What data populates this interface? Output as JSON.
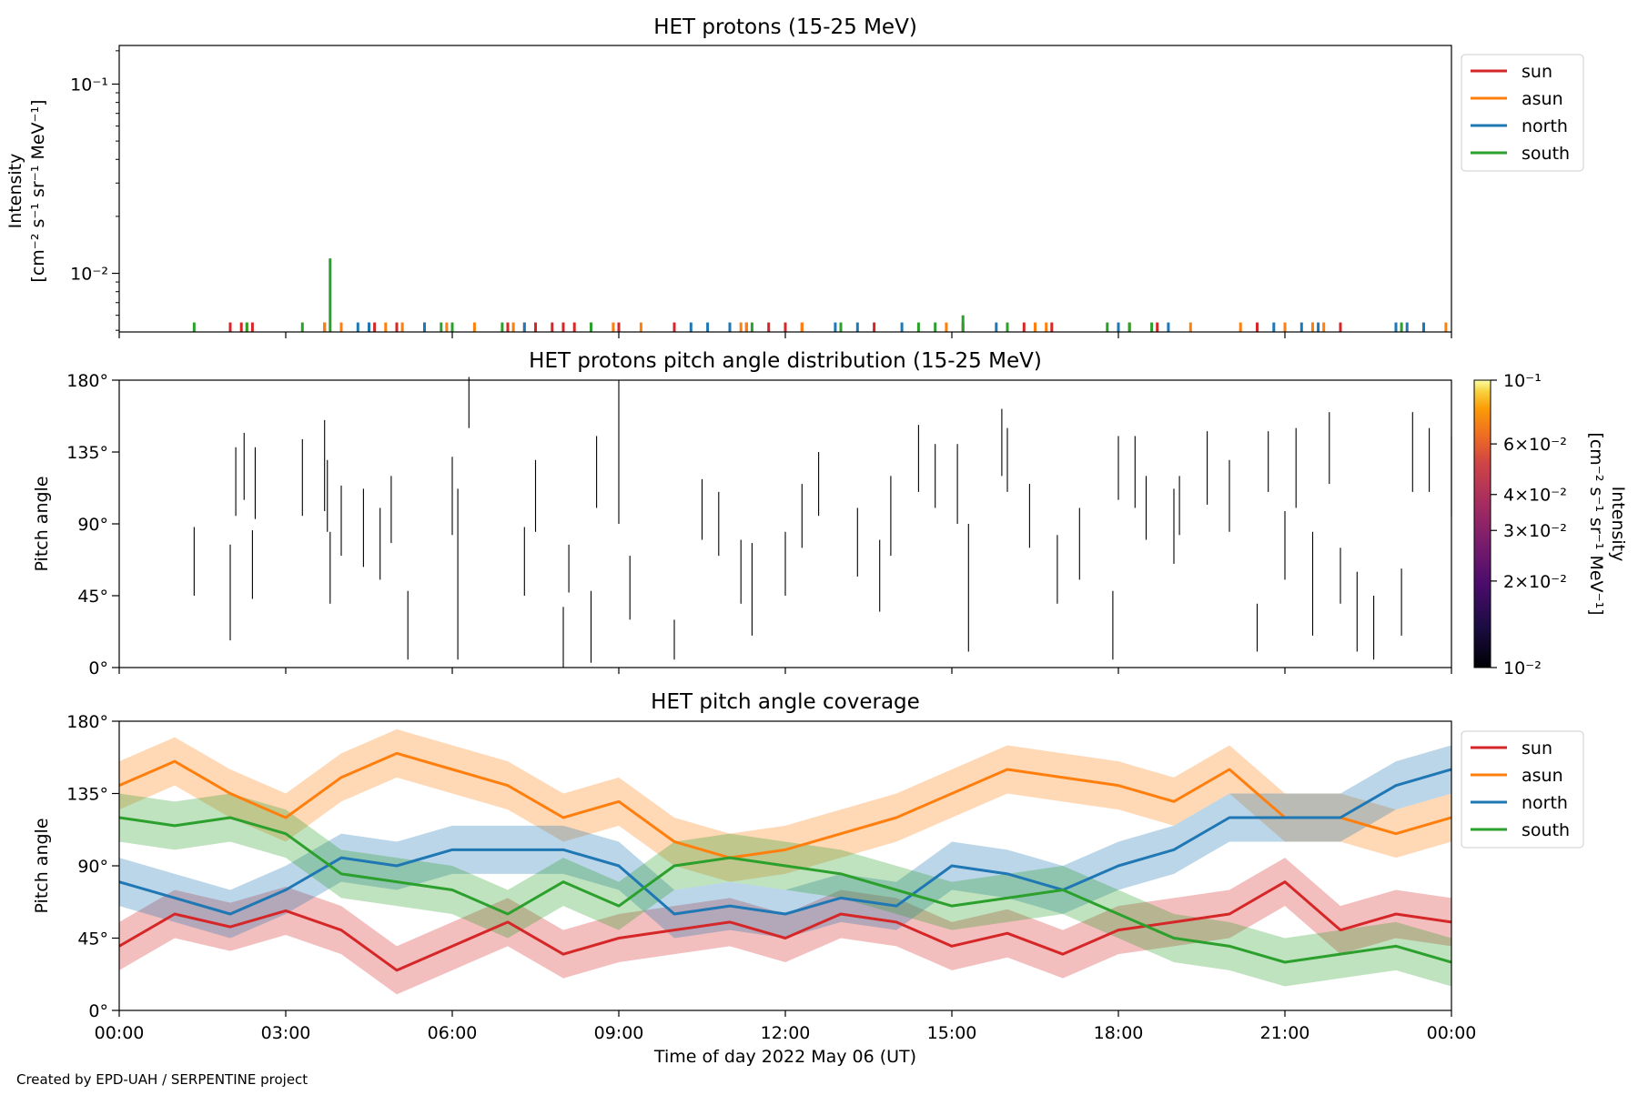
{
  "figure": {
    "credit": "Created by EPD-UAH / SERPENTINE project",
    "xlabel": "Time of day 2022 May 06 (UT)",
    "x_ticks": [
      "00:00",
      "03:00",
      "06:00",
      "09:00",
      "12:00",
      "15:00",
      "18:00",
      "21:00",
      "00:00"
    ]
  },
  "colors": {
    "sun": "#d62728",
    "asun": "#ff7f0e",
    "north": "#1f77b4",
    "south": "#2ca02c"
  },
  "chart_data": [
    {
      "type": "line",
      "title": "HET protons (15-25 MeV)",
      "ylabel_lines": [
        "Intensity",
        "[cm⁻² s⁻¹ sr⁻¹ MeV⁻¹]"
      ],
      "y_scale": "log",
      "y_ticks": [
        "10⁻¹",
        "10⁻²"
      ],
      "ylim": [
        0.0049,
        0.16
      ],
      "xlim_hours": [
        0,
        24
      ],
      "legend": [
        "sun",
        "asun",
        "north",
        "south"
      ],
      "legend_position": "outside-top-right",
      "series": [
        {
          "name": "sun",
          "spikes": [
            [
              2.0,
              0.0055
            ],
            [
              2.2,
              0.0055
            ],
            [
              2.4,
              0.0055
            ],
            [
              3.7,
              0.0055
            ],
            [
              4.6,
              0.0055
            ],
            [
              5.0,
              0.0055
            ],
            [
              5.5,
              0.0055
            ],
            [
              7.0,
              0.0055
            ],
            [
              7.5,
              0.0055
            ],
            [
              7.8,
              0.0055
            ],
            [
              8.0,
              0.0055
            ],
            [
              8.2,
              0.0055
            ],
            [
              8.5,
              0.0055
            ],
            [
              9.0,
              0.0055
            ],
            [
              10.0,
              0.0055
            ],
            [
              11.3,
              0.0055
            ],
            [
              11.7,
              0.0055
            ],
            [
              12.0,
              0.0055
            ],
            [
              12.3,
              0.0055
            ],
            [
              13.6,
              0.0055
            ],
            [
              15.2,
              0.0055
            ],
            [
              16.3,
              0.0055
            ],
            [
              16.8,
              0.0055
            ],
            [
              18.2,
              0.0055
            ],
            [
              18.7,
              0.0055
            ],
            [
              20.5,
              0.0055
            ],
            [
              21.5,
              0.0055
            ],
            [
              22.0,
              0.0055
            ]
          ]
        },
        {
          "name": "asun",
          "spikes": [
            [
              2.3,
              0.0055
            ],
            [
              3.7,
              0.0055
            ],
            [
              4.0,
              0.0055
            ],
            [
              4.5,
              0.0055
            ],
            [
              4.8,
              0.0055
            ],
            [
              5.1,
              0.0055
            ],
            [
              5.9,
              0.0055
            ],
            [
              6.4,
              0.0055
            ],
            [
              7.1,
              0.0055
            ],
            [
              7.3,
              0.0055
            ],
            [
              8.9,
              0.0055
            ],
            [
              9.4,
              0.0055
            ],
            [
              11.2,
              0.0055
            ],
            [
              11.3,
              0.0055
            ],
            [
              12.3,
              0.0055
            ],
            [
              14.9,
              0.0055
            ],
            [
              16.5,
              0.0055
            ],
            [
              16.7,
              0.0055
            ],
            [
              19.3,
              0.0055
            ],
            [
              20.2,
              0.0055
            ],
            [
              21.0,
              0.0055
            ],
            [
              21.5,
              0.0055
            ],
            [
              21.7,
              0.0055
            ],
            [
              23.9,
              0.0055
            ]
          ]
        },
        {
          "name": "north",
          "spikes": [
            [
              4.3,
              0.0055
            ],
            [
              4.5,
              0.0055
            ],
            [
              5.5,
              0.0055
            ],
            [
              7.3,
              0.0055
            ],
            [
              10.3,
              0.0055
            ],
            [
              10.6,
              0.0055
            ],
            [
              11.0,
              0.0055
            ],
            [
              12.9,
              0.0055
            ],
            [
              13.3,
              0.0055
            ],
            [
              14.1,
              0.0055
            ],
            [
              15.8,
              0.0055
            ],
            [
              18.0,
              0.0055
            ],
            [
              18.9,
              0.0055
            ],
            [
              20.8,
              0.0055
            ],
            [
              21.3,
              0.0055
            ],
            [
              21.6,
              0.0055
            ],
            [
              23.0,
              0.0055
            ],
            [
              23.2,
              0.0055
            ],
            [
              23.5,
              0.0055
            ]
          ]
        },
        {
          "name": "south",
          "spikes": [
            [
              1.35,
              0.0055
            ],
            [
              2.3,
              0.0055
            ],
            [
              3.3,
              0.0055
            ],
            [
              3.8,
              0.012
            ],
            [
              5.8,
              0.0055
            ],
            [
              6.0,
              0.0055
            ],
            [
              6.9,
              0.0055
            ],
            [
              8.5,
              0.0055
            ],
            [
              11.4,
              0.0055
            ],
            [
              13.0,
              0.0055
            ],
            [
              14.4,
              0.0055
            ],
            [
              14.7,
              0.0055
            ],
            [
              15.2,
              0.006
            ],
            [
              16.0,
              0.0055
            ],
            [
              17.8,
              0.0055
            ],
            [
              18.2,
              0.0055
            ],
            [
              18.6,
              0.0055
            ],
            [
              23.1,
              0.0055
            ]
          ]
        }
      ]
    },
    {
      "type": "heatmap",
      "title": "HET protons pitch angle distribution (15-25 MeV)",
      "ylabel": "Pitch angle",
      "y_ticks": [
        "180°",
        "135°",
        "90°",
        "45°",
        "0°"
      ],
      "ylim": [
        0,
        180
      ],
      "xlim_hours": [
        0,
        24
      ],
      "colorbar": {
        "label_lines": [
          "Intensity",
          "[cm⁻² s⁻¹ sr⁻¹ MeV⁻¹]"
        ],
        "scale": "log",
        "range": [
          0.01,
          0.1
        ],
        "ticks": [
          "10⁻¹",
          "6×10⁻²",
          "4×10⁻²",
          "3×10⁻²",
          "2×10⁻²",
          "10⁻²"
        ]
      },
      "segments": [
        [
          1.35,
          45,
          88
        ],
        [
          2.0,
          17,
          77
        ],
        [
          2.1,
          95,
          138
        ],
        [
          2.25,
          105,
          147
        ],
        [
          2.4,
          43,
          86
        ],
        [
          2.45,
          93,
          138
        ],
        [
          3.3,
          95,
          143
        ],
        [
          3.7,
          98,
          155
        ],
        [
          3.75,
          85,
          130
        ],
        [
          3.8,
          40,
          85
        ],
        [
          4.0,
          70,
          114
        ],
        [
          4.4,
          63,
          112
        ],
        [
          4.7,
          55,
          100
        ],
        [
          4.9,
          78,
          120
        ],
        [
          5.2,
          5,
          48
        ],
        [
          6.0,
          83,
          132
        ],
        [
          6.1,
          5,
          112
        ],
        [
          6.3,
          150,
          182
        ],
        [
          7.3,
          45,
          88
        ],
        [
          7.5,
          85,
          130
        ],
        [
          8.0,
          0,
          38
        ],
        [
          8.1,
          47,
          77
        ],
        [
          8.5,
          3,
          48
        ],
        [
          8.6,
          100,
          145
        ],
        [
          9.0,
          90,
          180
        ],
        [
          9.2,
          30,
          70
        ],
        [
          10.0,
          5,
          30
        ],
        [
          10.5,
          80,
          118
        ],
        [
          10.8,
          70,
          110
        ],
        [
          11.2,
          40,
          80
        ],
        [
          11.4,
          20,
          78
        ],
        [
          12.0,
          45,
          85
        ],
        [
          12.3,
          75,
          115
        ],
        [
          12.6,
          95,
          135
        ],
        [
          13.3,
          57,
          100
        ],
        [
          13.7,
          35,
          80
        ],
        [
          13.9,
          70,
          120
        ],
        [
          14.4,
          110,
          152
        ],
        [
          14.7,
          100,
          140
        ],
        [
          15.1,
          90,
          140
        ],
        [
          15.3,
          10,
          90
        ],
        [
          15.9,
          120,
          162
        ],
        [
          16.0,
          110,
          150
        ],
        [
          16.4,
          75,
          115
        ],
        [
          16.9,
          40,
          83
        ],
        [
          17.3,
          55,
          100
        ],
        [
          17.9,
          5,
          48
        ],
        [
          18.0,
          105,
          145
        ],
        [
          18.3,
          100,
          145
        ],
        [
          18.5,
          80,
          120
        ],
        [
          19.0,
          65,
          112
        ],
        [
          19.1,
          83,
          120
        ],
        [
          19.6,
          102,
          148
        ],
        [
          20.0,
          85,
          130
        ],
        [
          20.5,
          10,
          40
        ],
        [
          20.7,
          110,
          148
        ],
        [
          21.0,
          55,
          98
        ],
        [
          21.2,
          100,
          150
        ],
        [
          21.5,
          20,
          85
        ],
        [
          21.8,
          115,
          160
        ],
        [
          22.0,
          40,
          75
        ],
        [
          22.3,
          10,
          60
        ],
        [
          22.6,
          5,
          45
        ],
        [
          23.1,
          20,
          62
        ],
        [
          23.3,
          110,
          160
        ],
        [
          23.6,
          110,
          150
        ],
        [
          24.0,
          95,
          145
        ]
      ]
    },
    {
      "type": "line",
      "title": "HET pitch angle coverage",
      "ylabel": "Pitch angle",
      "y_ticks": [
        "180°",
        "135°",
        "90°",
        "45°",
        "0°"
      ],
      "ylim": [
        0,
        180
      ],
      "xlim_hours": [
        0,
        24
      ],
      "legend": [
        "sun",
        "asun",
        "north",
        "south"
      ],
      "legend_position": "outside-top-right",
      "band_halfwidth_deg": 15,
      "series": [
        {
          "name": "sun",
          "time_hours": [
            0,
            1,
            2,
            3,
            4,
            5,
            6,
            7,
            8,
            9,
            10,
            11,
            12,
            13,
            14,
            15,
            16,
            17,
            18,
            19,
            20,
            21,
            22,
            23,
            24
          ],
          "values": [
            40,
            60,
            52,
            62,
            50,
            25,
            40,
            55,
            35,
            45,
            50,
            55,
            45,
            60,
            55,
            40,
            48,
            35,
            50,
            55,
            60,
            80,
            50,
            60,
            55
          ]
        },
        {
          "name": "asun",
          "time_hours": [
            0,
            1,
            2,
            3,
            4,
            5,
            6,
            7,
            8,
            9,
            10,
            11,
            12,
            13,
            14,
            15,
            16,
            17,
            18,
            19,
            20,
            21,
            22,
            23,
            24
          ],
          "values": [
            140,
            155,
            135,
            120,
            145,
            160,
            150,
            140,
            120,
            130,
            105,
            95,
            100,
            110,
            120,
            135,
            150,
            145,
            140,
            130,
            150,
            120,
            120,
            110,
            120
          ]
        },
        {
          "name": "north",
          "time_hours": [
            0,
            1,
            2,
            3,
            4,
            5,
            6,
            7,
            8,
            9,
            10,
            11,
            12,
            13,
            14,
            15,
            16,
            17,
            18,
            19,
            20,
            21,
            22,
            23,
            24
          ],
          "values": [
            80,
            70,
            60,
            75,
            95,
            90,
            100,
            100,
            100,
            90,
            60,
            65,
            60,
            70,
            65,
            90,
            85,
            75,
            90,
            100,
            120,
            120,
            120,
            140,
            150
          ]
        },
        {
          "name": "south",
          "time_hours": [
            0,
            1,
            2,
            3,
            4,
            5,
            6,
            7,
            8,
            9,
            10,
            11,
            12,
            13,
            14,
            15,
            16,
            17,
            18,
            19,
            20,
            21,
            22,
            23,
            24
          ],
          "values": [
            120,
            115,
            120,
            110,
            85,
            80,
            75,
            60,
            80,
            65,
            90,
            95,
            90,
            85,
            75,
            65,
            70,
            75,
            60,
            45,
            40,
            30,
            35,
            40,
            30
          ]
        }
      ]
    }
  ]
}
